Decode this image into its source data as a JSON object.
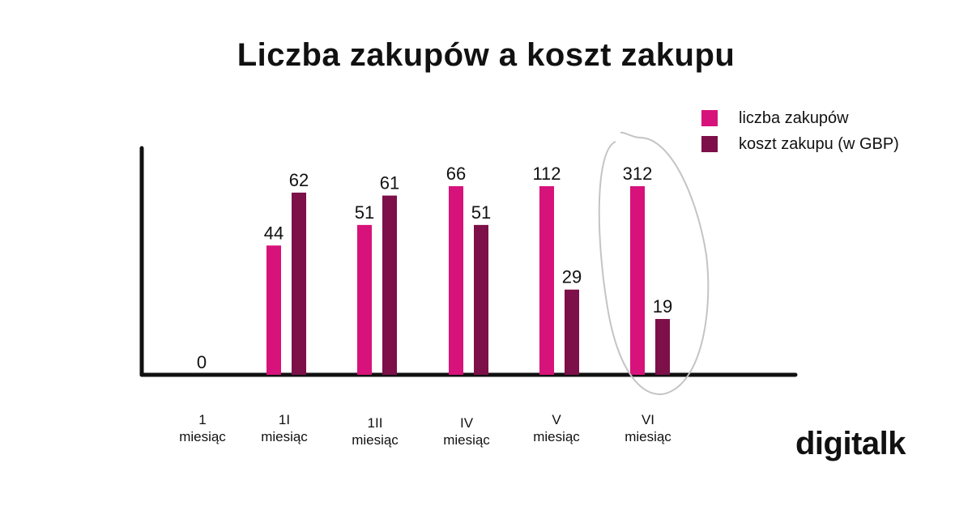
{
  "chart_data": {
    "type": "bar",
    "title": "Liczba zakupów a koszt zakupu",
    "categories": [
      [
        "1",
        "miesiąc"
      ],
      [
        "1I",
        "miesiąc"
      ],
      [
        "1II",
        "miesiąc"
      ],
      [
        "IV",
        "miesiąc"
      ],
      [
        "V",
        "miesiąc"
      ],
      [
        "VI",
        "miesiąc"
      ]
    ],
    "series": [
      {
        "name": "liczba zakupów",
        "color": "#d7127b",
        "values": [
          0,
          44,
          51,
          66,
          112,
          312
        ],
        "labels": [
          "0",
          "44",
          "51",
          "66",
          "112",
          "312"
        ]
      },
      {
        "name": "koszt zakupu (w GBP)",
        "color": "#7d1048",
        "values": [
          null,
          62,
          61,
          51,
          29,
          19
        ],
        "labels": [
          "",
          "62",
          "61",
          "51",
          "29",
          "19"
        ]
      }
    ],
    "xlabel": "",
    "ylabel": "",
    "legend": "top-right",
    "grid": false,
    "annotation": "hand-drawn ellipse highlighting VI miesiąc",
    "annotation_color": "#c4c4c4"
  },
  "brand": "digitalk"
}
